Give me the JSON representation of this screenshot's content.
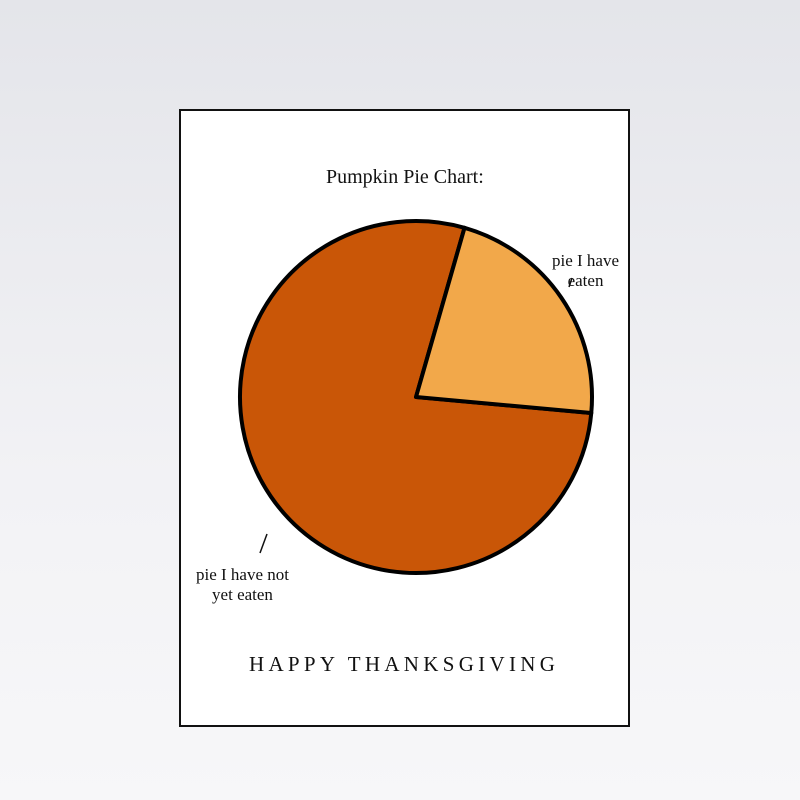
{
  "chart_data": {
    "type": "pie",
    "title": "Pumpkin Pie Chart:",
    "slices": [
      {
        "label": "pie I have eaten",
        "value": 22,
        "color": "#f2a84a"
      },
      {
        "label": "pie I have not yet eaten",
        "value": 78,
        "color": "#c95607"
      }
    ],
    "legend": "none",
    "outline_color": "#000000"
  },
  "card": {
    "greeting": "HAPPY THANKSGIVING"
  }
}
